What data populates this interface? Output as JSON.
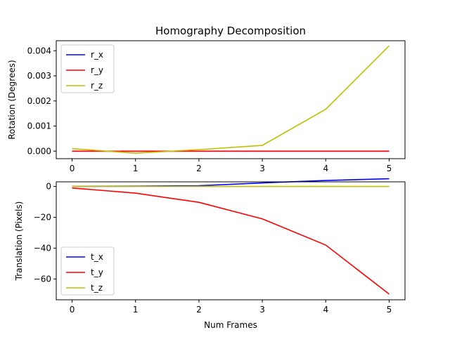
{
  "chart_data": [
    {
      "type": "line",
      "title": "Homography Decomposition",
      "xlabel": "",
      "ylabel": "Rotation (Degrees)",
      "x": [
        0,
        1,
        2,
        3,
        4,
        5
      ],
      "xticks": [
        0,
        1,
        2,
        3,
        4,
        5
      ],
      "xtick_labels": [
        "0",
        "1",
        "2",
        "3",
        "4",
        "5"
      ],
      "xlim": [
        -0.25,
        5.25
      ],
      "ylim": [
        -0.0003,
        0.0044
      ],
      "yticks": [
        0,
        0.001,
        0.002,
        0.003,
        0.004
      ],
      "ytick_labels": [
        "0.000",
        "0.001",
        "0.002",
        "0.003",
        "0.004"
      ],
      "legend_position": "upper-left",
      "grid": false,
      "series": [
        {
          "name": "r_x",
          "color": "#0000ff",
          "values": [
            0,
            0,
            0,
            0,
            0,
            0
          ]
        },
        {
          "name": "r_y",
          "color": "#ff0000",
          "values": [
            0,
            0,
            0,
            0,
            0,
            0
          ]
        },
        {
          "name": "r_z",
          "color": "#bfbf00",
          "values": [
            0.0001,
            -8e-05,
            6e-05,
            0.00023,
            0.00167,
            0.0042
          ]
        }
      ]
    },
    {
      "type": "line",
      "title": "",
      "xlabel": "Num Frames",
      "ylabel": "Translation (Pixels)",
      "x": [
        0,
        1,
        2,
        3,
        4,
        5
      ],
      "xticks": [
        0,
        1,
        2,
        3,
        4,
        5
      ],
      "xtick_labels": [
        "0",
        "1",
        "2",
        "3",
        "4",
        "5"
      ],
      "xlim": [
        -0.25,
        5.25
      ],
      "ylim": [
        -73.5,
        3.0
      ],
      "yticks": [
        0,
        -20,
        -40,
        -60
      ],
      "ytick_labels": [
        "0",
        "−20",
        "−40",
        "−60"
      ],
      "legend_position": "lower-left",
      "grid": false,
      "series": [
        {
          "name": "t_x",
          "color": "#0000ff",
          "values": [
            0.0,
            0.2,
            0.5,
            2.3,
            3.9,
            5.0
          ]
        },
        {
          "name": "t_y",
          "color": "#ff0000",
          "values": [
            -1.0,
            -4.3,
            -10.3,
            -21.0,
            -38.0,
            -69.8
          ]
        },
        {
          "name": "t_z",
          "color": "#bfbf00",
          "values": [
            0.0,
            0.0,
            0.0,
            0.0,
            0.0,
            0.0
          ]
        }
      ]
    }
  ]
}
